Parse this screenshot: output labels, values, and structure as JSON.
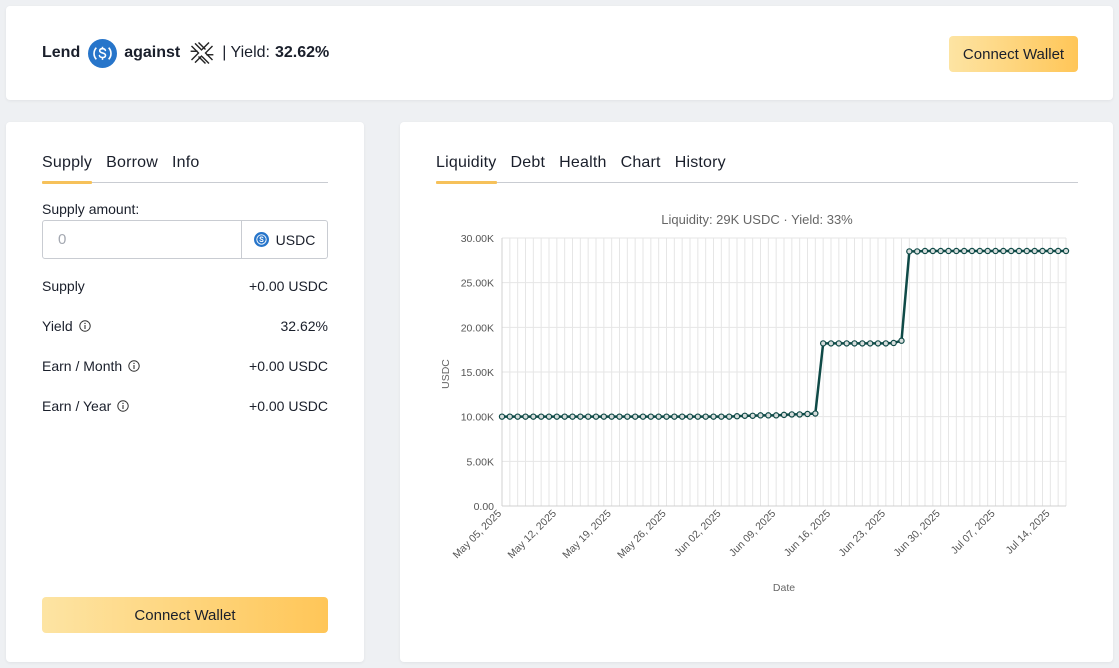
{
  "header": {
    "lend_label": "Lend",
    "against_label": "against",
    "yield_label": "| Yield:",
    "yield_value": "32.62%",
    "connect_label": "Connect Wallet"
  },
  "left_panel": {
    "tabs": [
      {
        "label": "Supply",
        "active": true
      },
      {
        "label": "Borrow",
        "active": false
      },
      {
        "label": "Info",
        "active": false
      }
    ],
    "supply_amount_label": "Supply amount:",
    "input_placeholder": "0",
    "currency": "USDC",
    "rows": [
      {
        "label": "Supply",
        "value": "+0.00 USDC",
        "info": false
      },
      {
        "label": "Yield",
        "value": "32.62%",
        "info": true
      },
      {
        "label": "Earn / Month",
        "value": "+0.00 USDC",
        "info": true
      },
      {
        "label": "Earn / Year",
        "value": "+0.00 USDC",
        "info": true
      }
    ],
    "connect_label": "Connect Wallet"
  },
  "right_panel": {
    "tabs": [
      {
        "label": "Liquidity",
        "active": true
      },
      {
        "label": "Debt",
        "active": false
      },
      {
        "label": "Health",
        "active": false
      },
      {
        "label": "Chart",
        "active": false
      },
      {
        "label": "History",
        "active": false
      }
    ]
  },
  "colors": {
    "accent": "#f6c15a",
    "line": "#0f4a47",
    "usdc_blue": "#2775ca"
  },
  "chart_data": {
    "type": "line",
    "title": "Liquidity: 29K USDC · Yield: 33%",
    "xlabel": "Date",
    "ylabel": "USDC",
    "ylim": [
      0,
      30000
    ],
    "yticks": [
      "0.00",
      "5.00K",
      "10.00K",
      "15.00K",
      "20.00K",
      "25.00K",
      "30.00K"
    ],
    "x_start": "May 05, 2025",
    "x_end": "Jul 16, 2025",
    "x_tick_labels": [
      "May 05, 2025",
      "May 12, 2025",
      "May 19, 2025",
      "May 26, 2025",
      "Jun 02, 2025",
      "Jun 09, 2025",
      "Jun 16, 2025",
      "Jun 23, 2025",
      "Jun 30, 2025",
      "Jul 07, 2025",
      "Jul 14, 2025"
    ],
    "grid": true,
    "series": [
      {
        "values": [
          10000,
          10000,
          10000,
          10000,
          10000,
          10000,
          10000,
          10000,
          10000,
          10000,
          10000,
          10000,
          10000,
          10000,
          10000,
          10000,
          10000,
          10000,
          10000,
          10000,
          10000,
          10000,
          10000,
          10000,
          10000,
          10000,
          10000,
          10000,
          10000,
          10000,
          10050,
          10100,
          10100,
          10150,
          10150,
          10150,
          10200,
          10250,
          10250,
          10300,
          10350,
          18200,
          18200,
          18200,
          18200,
          18200,
          18200,
          18200,
          18200,
          18200,
          18250,
          18500,
          28500,
          28500,
          28550,
          28550,
          28550,
          28550,
          28550,
          28550,
          28550,
          28550,
          28550,
          28550,
          28550,
          28550,
          28550,
          28550,
          28550,
          28550,
          28550,
          28550,
          28550
        ]
      }
    ]
  }
}
